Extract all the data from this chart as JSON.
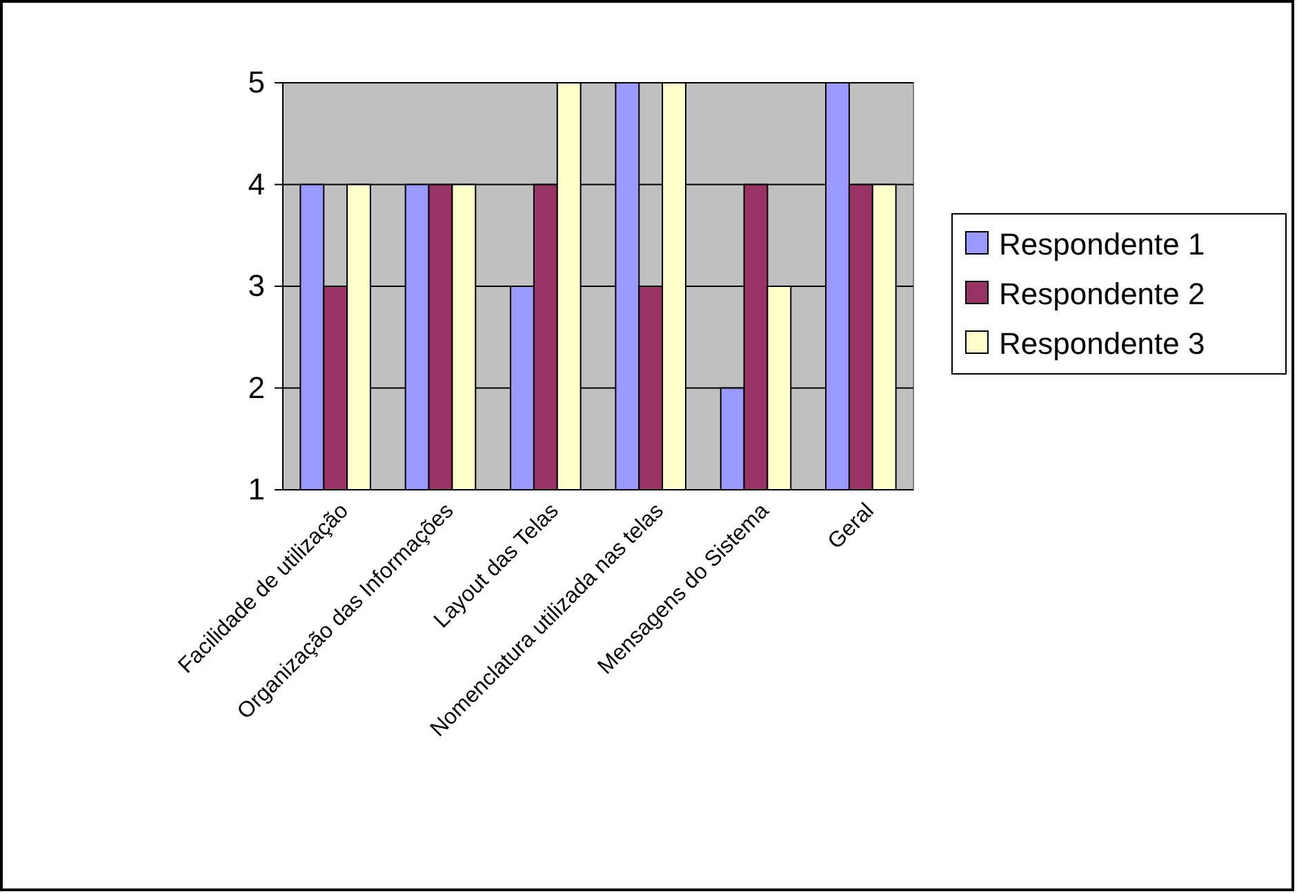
{
  "chart_data": {
    "type": "bar",
    "categories": [
      "Facilidade de utilização",
      "Organização das Informações",
      "Layout das Telas",
      "Nomenclatura utilizada nas telas",
      "Mensagens do Sistema",
      "Geral"
    ],
    "series": [
      {
        "name": "Respondente 1",
        "color": "#9999ff",
        "values": [
          4,
          4,
          3,
          5,
          2,
          5
        ]
      },
      {
        "name": "Respondente 2",
        "color": "#993366",
        "values": [
          3,
          4,
          4,
          3,
          4,
          4
        ]
      },
      {
        "name": "Respondente 3",
        "color": "#ffffcc",
        "values": [
          4,
          4,
          5,
          5,
          3,
          4
        ]
      }
    ],
    "ylim": [
      1,
      5
    ],
    "yticks": [
      1,
      2,
      3,
      4,
      5
    ],
    "grid": "y",
    "legend": "right"
  }
}
